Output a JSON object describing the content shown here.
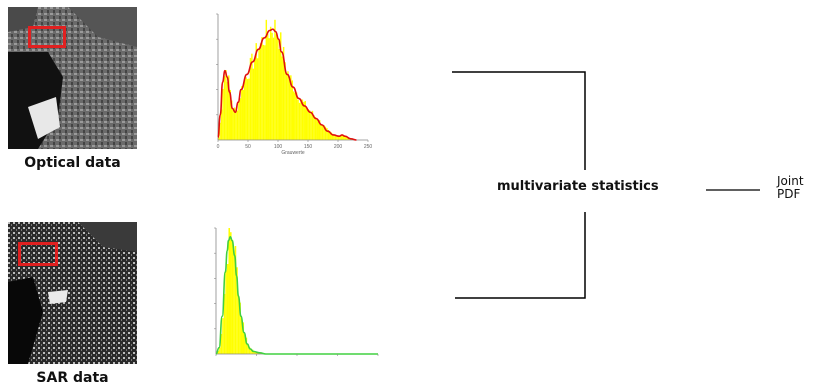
{
  "optical": {
    "caption": "Optical data",
    "histogram": {
      "type": "area",
      "xlabel": "Grauwerte",
      "xticks": [
        "0",
        "50",
        "100",
        "150",
        "200",
        "250"
      ],
      "xlim": [
        0,
        260
      ],
      "ylim": [
        0,
        1
      ],
      "fill_color": "#ffff00",
      "curve_color": "#e01010",
      "x": [
        0,
        4,
        8,
        12,
        16,
        20,
        25,
        30,
        35,
        40,
        50,
        60,
        70,
        80,
        90,
        95,
        100,
        105,
        110,
        120,
        130,
        140,
        150,
        160,
        170,
        180,
        190,
        200,
        210,
        215,
        220,
        230,
        240
      ],
      "y": [
        0.02,
        0.2,
        0.46,
        0.55,
        0.5,
        0.38,
        0.25,
        0.22,
        0.3,
        0.4,
        0.52,
        0.62,
        0.72,
        0.81,
        0.87,
        0.88,
        0.86,
        0.8,
        0.7,
        0.52,
        0.42,
        0.33,
        0.27,
        0.22,
        0.17,
        0.12,
        0.07,
        0.04,
        0.03,
        0.04,
        0.03,
        0.01,
        0.0
      ]
    }
  },
  "sar": {
    "caption": "SAR data",
    "histogram": {
      "type": "area",
      "xticks": [
        "",
        "",
        "",
        "",
        ""
      ],
      "xlim": [
        0,
        260
      ],
      "ylim": [
        0,
        1
      ],
      "fill_color": "#ffff00",
      "curve_color": "#40d040",
      "x": [
        0,
        5,
        10,
        15,
        18,
        20,
        23,
        26,
        30,
        33,
        36,
        40,
        45,
        50,
        55,
        60,
        70,
        80,
        100,
        130,
        160,
        200,
        240,
        260
      ],
      "y": [
        0.0,
        0.05,
        0.3,
        0.65,
        0.82,
        0.9,
        0.93,
        0.9,
        0.78,
        0.62,
        0.46,
        0.3,
        0.17,
        0.08,
        0.04,
        0.02,
        0.01,
        0.0,
        0.0,
        0.0,
        0.0,
        0.0,
        0.0,
        0.0
      ]
    }
  },
  "stats": {
    "label": "multivariate statistics"
  },
  "output": {
    "line1": "Joint",
    "line2": "PDF"
  }
}
